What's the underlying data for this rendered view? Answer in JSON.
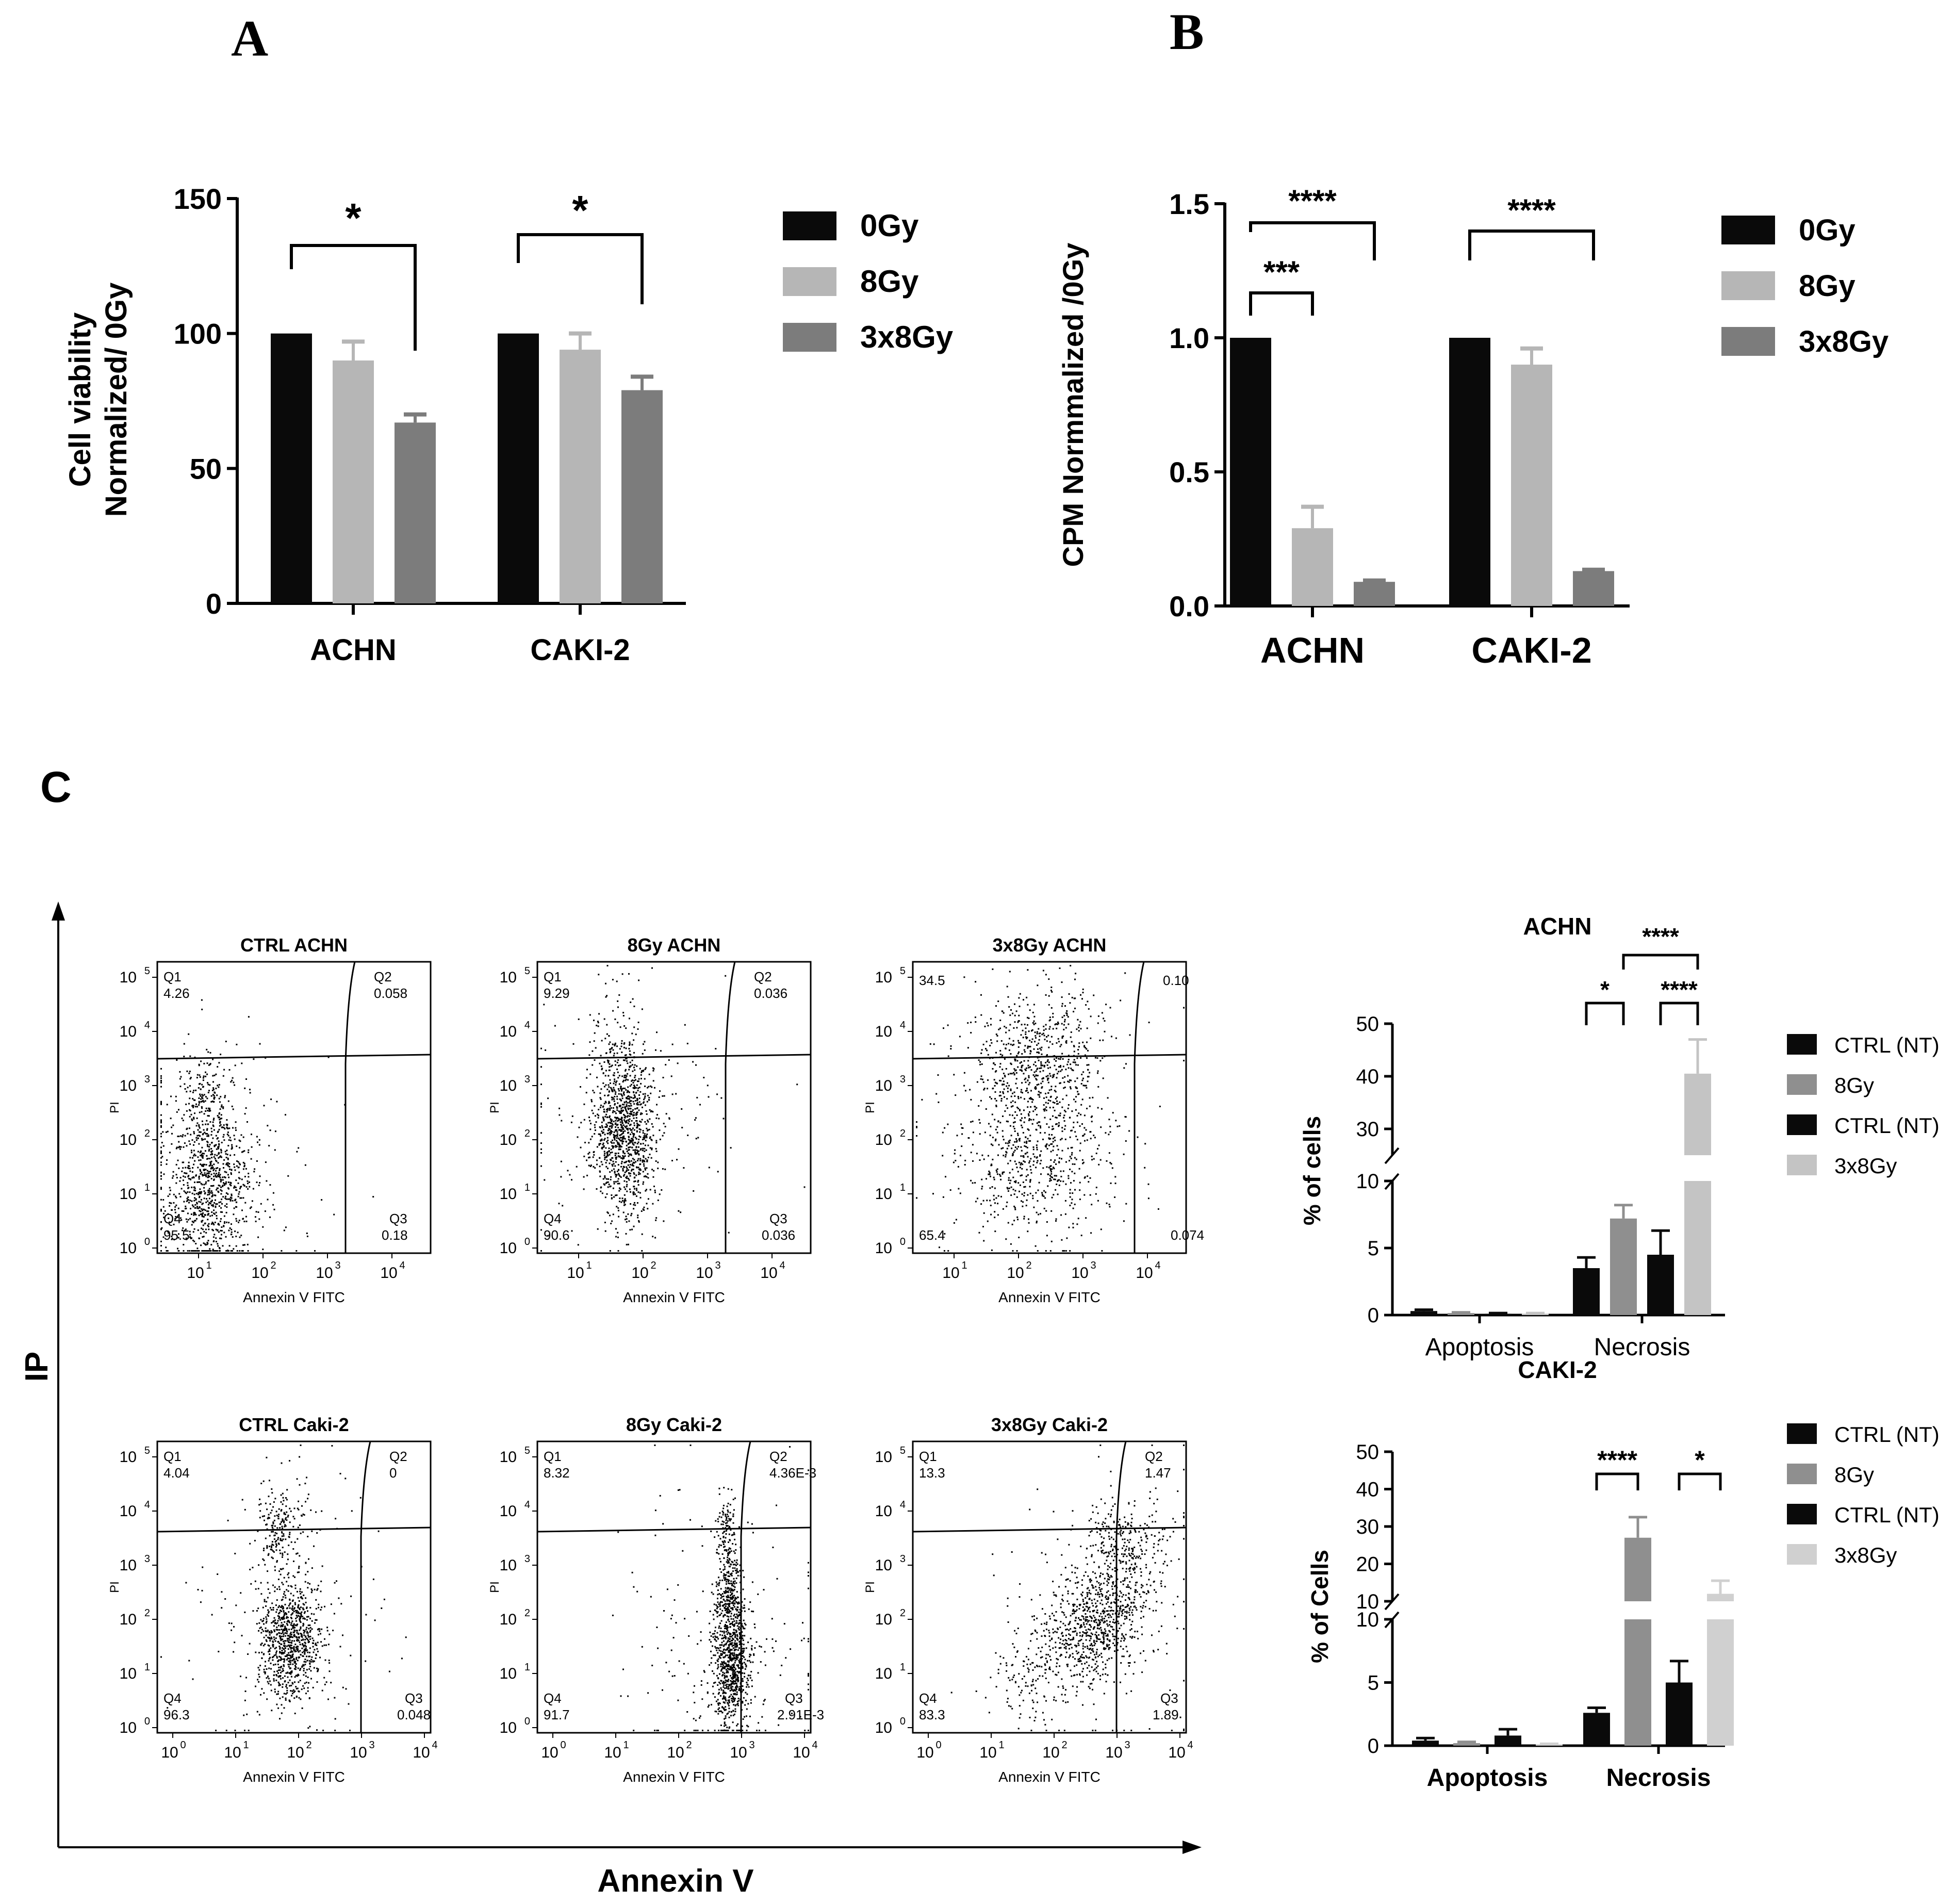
{
  "panel_labels": {
    "a": "A",
    "b": "B",
    "c": "C"
  },
  "colors": {
    "black": "#0a0a0a",
    "lightgray": "#b6b6b6",
    "midgray": "#8f8f8f",
    "darkgray": "#7c7c7c",
    "pale": "#c4c4c4",
    "palest": "#d0d0d0"
  },
  "chart_data": [
    {
      "id": "A",
      "type": "bar",
      "categories": [
        "ACHN",
        "CAKI-2"
      ],
      "ylabel_line1": "Cell viability",
      "ylabel_line2": "Normalized/ 0Gy",
      "ylim": [
        0,
        150
      ],
      "yticks": [
        "0",
        "50",
        "100",
        "150"
      ],
      "ytick_values": [
        0,
        50,
        100,
        150
      ],
      "series": [
        {
          "name": "0Gy",
          "values": [
            100,
            100
          ],
          "errors": [
            0,
            0
          ]
        },
        {
          "name": "8Gy",
          "values": [
            90,
            94
          ],
          "errors": [
            7,
            6
          ]
        },
        {
          "name": "3x8Gy",
          "values": [
            67,
            79
          ],
          "errors": [
            3,
            5
          ]
        }
      ],
      "significance": [
        {
          "group": 0,
          "from": 0,
          "to": 2,
          "label": "*"
        },
        {
          "group": 1,
          "from": 0,
          "to": 2,
          "label": "*"
        }
      ]
    },
    {
      "id": "B",
      "type": "bar",
      "categories": [
        "ACHN",
        "CAKI-2"
      ],
      "ylabel": "CPM Normmalized /0Gy",
      "ylim": [
        0,
        1.5
      ],
      "yticks": [
        "0.0",
        "0.5",
        "1.0",
        "1.5"
      ],
      "ytick_values": [
        0,
        0.5,
        1.0,
        1.5
      ],
      "series": [
        {
          "name": "0Gy",
          "values": [
            1.0,
            1.0
          ],
          "errors": [
            0,
            0
          ]
        },
        {
          "name": "8Gy",
          "values": [
            0.29,
            0.9
          ],
          "errors": [
            0.08,
            0.06
          ]
        },
        {
          "name": "3x8Gy",
          "values": [
            0.09,
            0.13
          ],
          "errors": [
            0.005,
            0.005
          ]
        }
      ],
      "significance": [
        {
          "group": 0,
          "from": 0,
          "to": 2,
          "label": "****"
        },
        {
          "group": 0,
          "from": 0,
          "to": 1,
          "label": "***"
        },
        {
          "group": 1,
          "from": 0,
          "to": 2,
          "label": "****"
        }
      ]
    },
    {
      "id": "C-ACHN",
      "type": "bar",
      "title": "ACHN",
      "categories": [
        "Apoptosis",
        "Necrosis"
      ],
      "ylabel": "% of cells",
      "ylim": [
        0,
        50
      ],
      "axis_break": [
        10,
        25
      ],
      "yticks_lower": [
        "0",
        "5",
        "10"
      ],
      "yticks_lower_values": [
        0,
        5,
        10
      ],
      "yticks_upper": [
        "30",
        "40",
        "50"
      ],
      "yticks_upper_values": [
        30,
        40,
        50
      ],
      "series": [
        {
          "name": "CTRL (NT)",
          "values": [
            0.3,
            3.5
          ],
          "errors": [
            0.1,
            0.8
          ]
        },
        {
          "name": "8Gy",
          "values": [
            0.15,
            7.2
          ],
          "errors": [
            0.05,
            1.0
          ]
        },
        {
          "name": "CTRL (NT)",
          "values": [
            0.1,
            4.5
          ],
          "errors": [
            0.05,
            1.8
          ]
        },
        {
          "name": "3x8Gy",
          "values": [
            0.1,
            40.5
          ],
          "errors": [
            0.05,
            6.5
          ]
        }
      ],
      "significance": [
        {
          "from": 0,
          "to": 1,
          "label": "*"
        },
        {
          "from": 2,
          "to": 3,
          "label": "****"
        },
        {
          "from": 1,
          "to": 3,
          "label": "****"
        }
      ]
    },
    {
      "id": "C-CAKI2",
      "type": "bar",
      "title": "CAKI-2",
      "categories": [
        "Apoptosis",
        "Necrosis"
      ],
      "ylabel": "% of Cells",
      "ylim": [
        0,
        50
      ],
      "axis_break": [
        10,
        10
      ],
      "yticks_lower": [
        "0",
        "5",
        "10"
      ],
      "yticks_lower_values": [
        0,
        5,
        10
      ],
      "yticks_upper": [
        "10",
        "20",
        "30",
        "40",
        "50"
      ],
      "yticks_upper_values": [
        10,
        20,
        30,
        40,
        50
      ],
      "series": [
        {
          "name": "CTRL (NT)",
          "values": [
            0.4,
            2.6
          ],
          "errors": [
            0.2,
            0.4
          ]
        },
        {
          "name": "8Gy",
          "values": [
            0.2,
            27
          ],
          "errors": [
            0.1,
            5.5
          ]
        },
        {
          "name": "CTRL (NT)",
          "values": [
            0.8,
            5.0
          ],
          "errors": [
            0.5,
            1.7
          ]
        },
        {
          "name": "3x8Gy",
          "values": [
            0.1,
            12
          ],
          "errors": [
            0.05,
            3.5
          ]
        }
      ],
      "significance": [
        {
          "from": 0,
          "to": 1,
          "label": "****"
        },
        {
          "from": 2,
          "to": 3,
          "label": "*"
        }
      ]
    }
  ],
  "flow_cytometry": {
    "overall_xlabel": "Annexin V",
    "overall_ylabel": "IP",
    "y_axis_label": "PI",
    "x_axis_label": "Annexin V FITC",
    "plots": [
      {
        "title": "CTRL ACHN",
        "q1_label": "Q1",
        "q1": "4.26",
        "q2_label": "Q2",
        "q2": "0.058",
        "q3_label": "Q3",
        "q3": "0.18",
        "q4_label": "Q4",
        "q4": "95.5",
        "xticks": [
          "1",
          "2",
          "3",
          "4"
        ]
      },
      {
        "title": "8Gy ACHN",
        "q1_label": "Q1",
        "q1": "9.29",
        "q2_label": "Q2",
        "q2": "0.036",
        "q3_label": "Q3",
        "q3": "0.036",
        "q4_label": "Q4",
        "q4": "90.6",
        "xticks": [
          "1",
          "2",
          "3",
          "4"
        ]
      },
      {
        "title": "3x8Gy ACHN",
        "q1_label": "",
        "q1": "34.5",
        "q2_label": "",
        "q2": "0.10",
        "q3_label": "",
        "q3": "0.074",
        "q4_label": "",
        "q4": "65.4",
        "xticks": [
          "1",
          "2",
          "3",
          "4"
        ]
      },
      {
        "title": "CTRL Caki-2",
        "q1_label": "Q1",
        "q1": "4.04",
        "q2_label": "Q2",
        "q2": "0",
        "q3_label": "Q3",
        "q3": "0.048",
        "q4_label": "Q4",
        "q4": "96.3",
        "xticks": [
          "0",
          "1",
          "2",
          "3",
          "4"
        ]
      },
      {
        "title": "8Gy Caki-2",
        "q1_label": "Q1",
        "q1": "8.32",
        "q2_label": "Q2",
        "q2": "4.36E-3",
        "q3_label": "Q3",
        "q3": "2.91E-3",
        "q4_label": "Q4",
        "q4": "91.7",
        "xticks": [
          "0",
          "1",
          "2",
          "3",
          "4"
        ]
      },
      {
        "title": "3x8Gy Caki-2",
        "q1_label": "Q1",
        "q1": "13.3",
        "q2_label": "Q2",
        "q2": "1.47",
        "q3_label": "Q3",
        "q3": "1.89",
        "q4_label": "Q4",
        "q4": "83.3",
        "xticks": [
          "0",
          "1",
          "2",
          "3",
          "4"
        ]
      }
    ]
  }
}
